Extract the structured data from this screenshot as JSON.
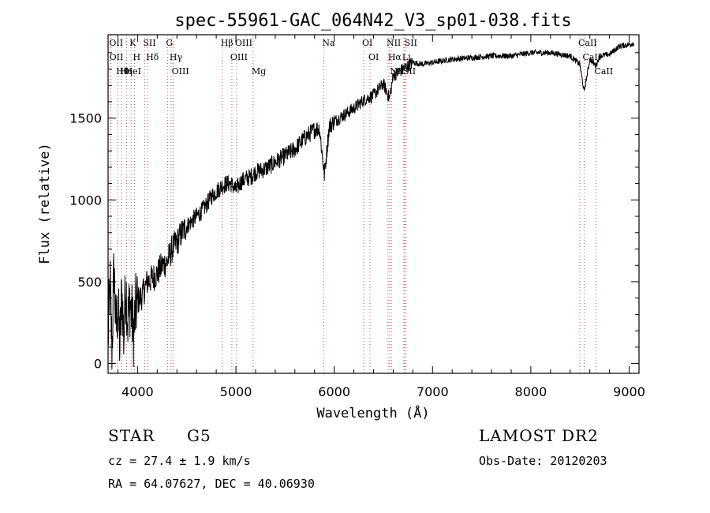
{
  "chart_data": {
    "type": "line",
    "title": "spec-55961-GAC_064N42_V3_sp01-038.fits",
    "xlabel": "Wavelength (Å)",
    "ylabel": "Flux (relative)",
    "xlim": [
      3700,
      9100
    ],
    "ylim": [
      -60,
      2010
    ],
    "x_ticks": [
      4000,
      5000,
      6000,
      7000,
      8000,
      9000
    ],
    "y_ticks": [
      0,
      500,
      1000,
      1500
    ],
    "grid": false,
    "series": [
      {
        "x": [
          3700,
          3720,
          3740,
          3760,
          3780,
          3800,
          3820,
          3840,
          3860,
          3880,
          3900,
          3920,
          3940,
          3960,
          3980,
          4000,
          4050,
          4100,
          4150,
          4200,
          4250,
          4300,
          4350,
          4400,
          4450,
          4500,
          4550,
          4600,
          4650,
          4700,
          4750,
          4800,
          4850,
          4900,
          4950,
          5000,
          5050,
          5100,
          5150,
          5200,
          5300,
          5400,
          5500,
          5600,
          5700,
          5800,
          5850,
          5900,
          5950,
          6000,
          6100,
          6200,
          6300,
          6400,
          6500,
          6563,
          6600,
          6700,
          6800,
          6900,
          7000,
          7200,
          7400,
          7600,
          7800,
          8000,
          8200,
          8400,
          8498,
          8542,
          8600,
          8662,
          8700,
          8800,
          8900,
          9000,
          9050
        ],
        "y": [
          150,
          480,
          80,
          600,
          200,
          350,
          100,
          450,
          150,
          500,
          250,
          380,
          300,
          180,
          330,
          380,
          420,
          500,
          520,
          550,
          600,
          620,
          700,
          740,
          800,
          840,
          870,
          900,
          930,
          970,
          1020,
          1050,
          1080,
          1100,
          1100,
          1060,
          1110,
          1130,
          1140,
          1170,
          1190,
          1230,
          1270,
          1310,
          1380,
          1430,
          1440,
          1150,
          1450,
          1480,
          1520,
          1560,
          1610,
          1640,
          1710,
          1620,
          1760,
          1800,
          1840,
          1830,
          1840,
          1860,
          1870,
          1880,
          1880,
          1900,
          1900,
          1880,
          1830,
          1660,
          1860,
          1820,
          1880,
          1890,
          1940,
          1950,
          1960
        ]
      }
    ],
    "line_markers": [
      {
        "label": "Hθ",
        "x": 3798
      },
      {
        "label": "K",
        "x": 3934
      },
      {
        "label": "Hδ",
        "x": 4102
      },
      {
        "label": "OII",
        "x": 3727
      },
      {
        "label": "HeI",
        "x": 3889
      },
      {
        "label": "SII",
        "x": 4072
      },
      {
        "label": "OIII",
        "x": 4363
      },
      {
        "label": "OIII",
        "x": 4959
      },
      {
        "label": "OIII",
        "x": 5007
      },
      {
        "label": "Hγ",
        "x": 4341
      },
      {
        "label": "OII",
        "x": 3729
      },
      {
        "label": "Hη",
        "x": 3835
      },
      {
        "label": "H",
        "x": 3969
      },
      {
        "label": "G",
        "x": 4305
      },
      {
        "label": "Hβ",
        "x": 4861
      },
      {
        "label": "Mg",
        "x": 5175
      },
      {
        "label": "Na",
        "x": 5893
      },
      {
        "label": "OI",
        "x": 6300
      },
      {
        "label": "OI",
        "x": 6364
      },
      {
        "label": "Hα",
        "x": 6563
      },
      {
        "label": "SII",
        "x": 6716
      },
      {
        "label": "NII",
        "x": 6548
      },
      {
        "label": "Li",
        "x": 6708
      },
      {
        "label": "NII",
        "x": 6583
      },
      {
        "label": "SII",
        "x": 6731
      },
      {
        "label": "CaII",
        "x": 8662
      },
      {
        "label": "CaII",
        "x": 8542
      },
      {
        "label": "CaII",
        "x": 8498
      }
    ]
  },
  "info": {
    "object_type": "STAR",
    "subclass": "G5",
    "redshift": "cz = 27.4 ± 1.9 km/s",
    "coords": "RA =  64.07627, DEC =  40.06930",
    "survey": "LAMOST DR2",
    "obs_date": "Obs-Date: 20120203"
  },
  "colors": {
    "spectrum": "#000000",
    "marker_lines": "#c85050",
    "axes": "#000000"
  }
}
